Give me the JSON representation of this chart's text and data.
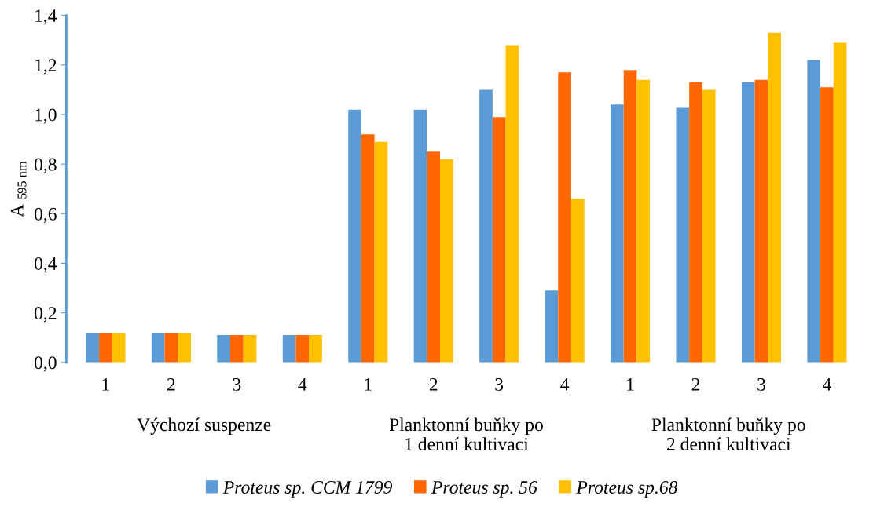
{
  "chart_data": {
    "type": "bar",
    "ylabel": "A $_{595 nm}$",
    "categories": [
      "1",
      "2",
      "3",
      "4",
      "1",
      "2",
      "3",
      "4",
      "1",
      "2",
      "3",
      "4"
    ],
    "series": [
      {
        "name": "Proteus sp. CCM 1799",
        "color": "#5b9bd5",
        "values": [
          0.12,
          0.12,
          0.11,
          0.11,
          1.02,
          1.02,
          1.1,
          0.29,
          1.04,
          1.03,
          1.13,
          1.22
        ]
      },
      {
        "name": "Proteus sp. 56",
        "color": "#ff6600",
        "values": [
          0.12,
          0.12,
          0.11,
          0.11,
          0.92,
          0.85,
          0.99,
          1.17,
          1.18,
          1.13,
          1.14,
          1.11
        ]
      },
      {
        "name": "Proteus sp.68",
        "color": "#ffc000",
        "values": [
          0.12,
          0.12,
          0.11,
          0.11,
          0.89,
          0.82,
          1.28,
          0.66,
          1.14,
          1.1,
          1.33,
          1.29
        ]
      }
    ],
    "annotations": [
      "Výchozí suspenze",
      "Planktonní buňky po\n1 denní kultivaci",
      "Planktonní buňky po\n2 denní kultivaci"
    ],
    "ylim": [
      0,
      1.4
    ],
    "yticks": [
      {
        "value": 0,
        "label": "0,0"
      },
      {
        "value": 0.2,
        "label": "0,2"
      },
      {
        "value": 0.4,
        "label": "0,4"
      },
      {
        "value": 0.6,
        "label": "0,6"
      },
      {
        "value": 0.8,
        "label": "0,8"
      },
      {
        "value": 1.0,
        "label": "1,0"
      },
      {
        "value": 1.2,
        "label": "1,2"
      },
      {
        "value": 1.4,
        "label": "1,4"
      }
    ],
    "grid": false,
    "legend": "bottom"
  }
}
